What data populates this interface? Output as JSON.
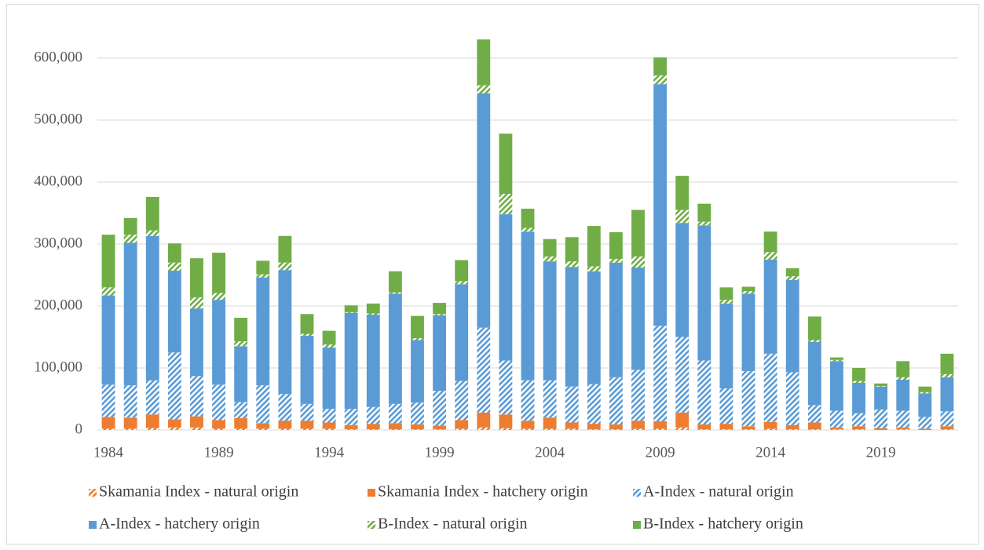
{
  "chart_data": {
    "type": "stacked_bar",
    "x": [
      1984,
      1985,
      1986,
      1987,
      1988,
      1989,
      1990,
      1991,
      1992,
      1993,
      1994,
      1995,
      1996,
      1997,
      1998,
      1999,
      2000,
      2001,
      2002,
      2003,
      2004,
      2005,
      2006,
      2007,
      2008,
      2009,
      2010,
      2011,
      2012,
      2013,
      2014,
      2015,
      2016,
      2017,
      2018,
      2019,
      2020,
      2021,
      2022
    ],
    "xlim": [
      1983.5,
      2022.5
    ],
    "xticks": [
      1984,
      1989,
      1994,
      1999,
      2004,
      2009,
      2014,
      2019
    ],
    "ylim": [
      0,
      650000
    ],
    "yticks": [
      0,
      {
        "value": 100000,
        "label": "100,000"
      },
      {
        "value": 200000,
        "label": "200,000"
      },
      {
        "value": 300000,
        "label": "300,000"
      },
      {
        "value": 400000,
        "label": "400,000"
      },
      {
        "value": 500000,
        "label": "500,000"
      },
      {
        "value": 600000,
        "label": "600,000"
      }
    ],
    "grid": true,
    "legend": "bottom",
    "series": [
      {
        "name": "Skamania Index - natural origin",
        "color": "#ed7d31",
        "hatch": true,
        "values": [
          2000,
          2000,
          3000,
          4000,
          4000,
          2000,
          2000,
          2000,
          2000,
          2000,
          2000,
          1000,
          1000,
          1000,
          1000,
          1000,
          2000,
          4000,
          3000,
          2000,
          2000,
          2000,
          1000,
          1000,
          2000,
          2000,
          4000,
          1000,
          1000,
          1000,
          2000,
          1000,
          1000,
          1000,
          1000,
          0,
          1000,
          0,
          1000
        ]
      },
      {
        "name": "Skamania Index - hatchery origin",
        "color": "#ed7d31",
        "hatch": false,
        "values": [
          19000,
          18000,
          22000,
          13000,
          18000,
          14000,
          17000,
          9000,
          13000,
          13000,
          10000,
          7000,
          9000,
          10000,
          8000,
          6000,
          14000,
          24000,
          22000,
          13000,
          18000,
          10000,
          9000,
          8000,
          13000,
          12000,
          24000,
          8000,
          9000,
          5000,
          11000,
          7000,
          11000,
          3000,
          5000,
          3000,
          3000,
          2000,
          5000
        ]
      },
      {
        "name": "A-Index - natural origin",
        "color": "#5b9bd5",
        "hatch": true,
        "values": [
          52000,
          52000,
          55000,
          108000,
          65000,
          57000,
          26000,
          61000,
          43000,
          27000,
          22000,
          26000,
          27000,
          31000,
          35000,
          56000,
          63000,
          137000,
          87000,
          65000,
          60000,
          58000,
          64000,
          76000,
          82000,
          154000,
          122000,
          103000,
          57000,
          89000,
          110000,
          85000,
          28000,
          27000,
          21000,
          30000,
          27000,
          19000,
          24000
        ]
      },
      {
        "name": "A-Index - hatchery origin",
        "color": "#5b9bd5",
        "hatch": false,
        "values": [
          144000,
          230000,
          233000,
          132000,
          109000,
          137000,
          90000,
          174000,
          200000,
          110000,
          99000,
          155000,
          149000,
          178000,
          101000,
          122000,
          156000,
          378000,
          236000,
          240000,
          192000,
          193000,
          182000,
          185000,
          165000,
          390000,
          184000,
          218000,
          137000,
          125000,
          152000,
          149000,
          102000,
          80000,
          49000,
          37000,
          50000,
          38000,
          55000
        ]
      },
      {
        "name": "B-Index - natural origin",
        "color": "#70ad47",
        "hatch": true,
        "values": [
          13000,
          13000,
          9000,
          13000,
          18000,
          11000,
          8000,
          5000,
          12000,
          3000,
          5000,
          1000,
          2000,
          2000,
          3000,
          2000,
          5000,
          13000,
          33000,
          6000,
          8000,
          9000,
          8000,
          6000,
          18000,
          14000,
          21000,
          6000,
          6000,
          4000,
          12000,
          6000,
          3000,
          2000,
          3000,
          1000,
          4000,
          2000,
          5000
        ]
      },
      {
        "name": "B-Index - hatchery origin",
        "color": "#70ad47",
        "hatch": false,
        "values": [
          85000,
          27000,
          54000,
          31000,
          63000,
          65000,
          38000,
          22000,
          43000,
          32000,
          22000,
          11000,
          16000,
          34000,
          36000,
          18000,
          34000,
          74000,
          97000,
          31000,
          28000,
          39000,
          65000,
          43000,
          75000,
          29000,
          55000,
          29000,
          20000,
          7000,
          33000,
          13000,
          38000,
          4000,
          21000,
          4000,
          26000,
          9000,
          33000
        ]
      }
    ]
  }
}
